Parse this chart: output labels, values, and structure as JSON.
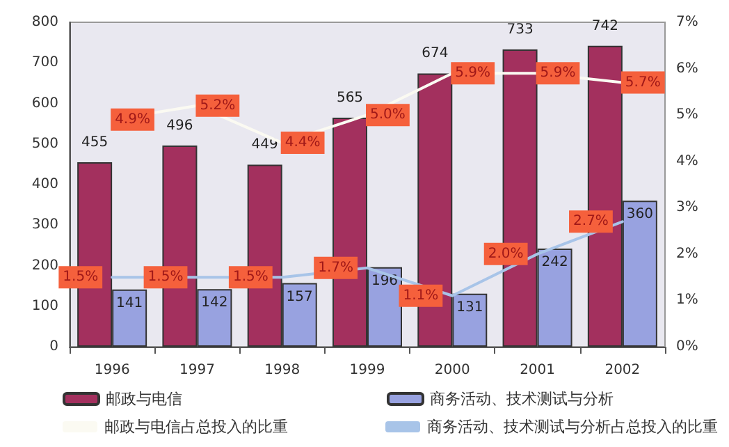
{
  "chart_data": {
    "type": "bar",
    "categories": [
      "1996",
      "1997",
      "1998",
      "1999",
      "2000",
      "2001",
      "2002"
    ],
    "series": [
      {
        "name": "邮政与电信",
        "axis": "y",
        "color": "#a3305e",
        "values": [
          455,
          496,
          449,
          565,
          674,
          733,
          742
        ],
        "value_labels": [
          "455",
          "496",
          "449",
          "565",
          "674",
          "733",
          "742"
        ]
      },
      {
        "name": "商务活动、技术测试与分析",
        "axis": "y",
        "color": "#98a2e0",
        "values": [
          141,
          142,
          157,
          196,
          131,
          242,
          360
        ],
        "value_labels": [
          "141",
          "142",
          "157",
          "196",
          "131",
          "242",
          "360"
        ]
      },
      {
        "name": "邮政与电信占总投入的比重",
        "type": "line",
        "axis": "y2",
        "color": "#fbfaf2",
        "values": [
          4.9,
          5.2,
          4.4,
          5.0,
          5.9,
          5.9,
          5.7
        ],
        "value_labels": [
          "4.9%",
          "5.2%",
          "4.4%",
          "5.0%",
          "5.9%",
          "5.9%",
          "5.7%"
        ]
      },
      {
        "name": "商务活动、技术测试与分析占总投入的比重",
        "type": "line",
        "axis": "y2",
        "color": "#a8c4e8",
        "values": [
          1.5,
          1.5,
          1.5,
          1.7,
          1.1,
          2.0,
          2.7
        ],
        "value_labels": [
          "1.5%",
          "1.5%",
          "1.5%",
          "1.7%",
          "1.1%",
          "2.0%",
          "2.7%"
        ]
      }
    ],
    "ylim": [
      0,
      800
    ],
    "yticks": [
      0,
      100,
      200,
      300,
      400,
      500,
      600,
      700,
      800
    ],
    "y2lim": [
      0,
      7
    ],
    "y2ticks": [
      {
        "value": 0,
        "label": "0%"
      },
      {
        "value": 1,
        "label": "1%"
      },
      {
        "value": 2,
        "label": "2%"
      },
      {
        "value": 3,
        "label": "3%"
      },
      {
        "value": 4,
        "label": "4%"
      },
      {
        "value": 5,
        "label": "5%"
      },
      {
        "value": 6,
        "label": "6%"
      },
      {
        "value": 7,
        "label": "7%"
      }
    ],
    "grid": false,
    "legend": "bottom",
    "marker": "none",
    "line_style": "solid"
  }
}
